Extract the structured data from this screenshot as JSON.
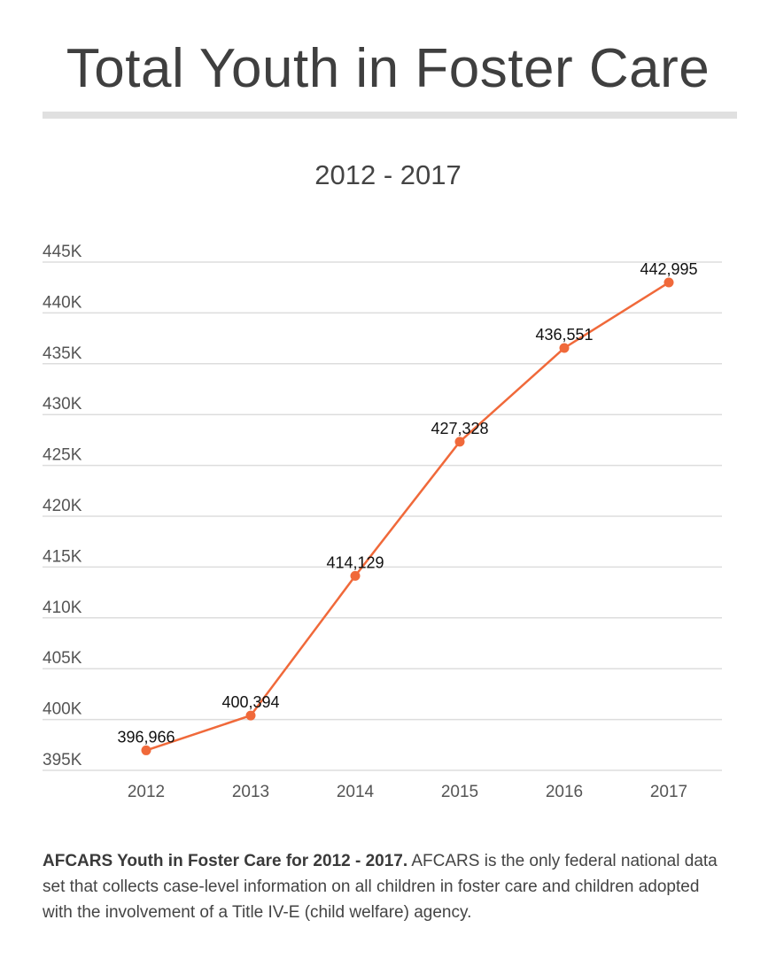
{
  "title": "Total Youth in Foster Care",
  "subtitle": "2012 - 2017",
  "colors": {
    "line": "#f0693a",
    "grid": "#dddddd",
    "text": "#444444"
  },
  "chart_data": {
    "type": "line",
    "title": "Total Youth in Foster Care",
    "subtitle": "2012 - 2017",
    "xlabel": "",
    "ylabel": "",
    "categories": [
      "2012",
      "2013",
      "2014",
      "2015",
      "2016",
      "2017"
    ],
    "series": [
      {
        "name": "Total Youth in Foster Care",
        "values": [
          396966,
          400394,
          414129,
          427328,
          436551,
          442995
        ]
      }
    ],
    "data_labels": [
      "396,966",
      "400,394",
      "414,129",
      "427,328",
      "436,551",
      "442,995"
    ],
    "ylim": [
      395000,
      445000
    ],
    "yticks": [
      395000,
      400000,
      405000,
      410000,
      415000,
      420000,
      425000,
      430000,
      435000,
      440000,
      445000
    ],
    "ytick_labels": [
      "395K",
      "400K",
      "405K",
      "410K",
      "415K",
      "420K",
      "425K",
      "430K",
      "435K",
      "440K",
      "445K"
    ],
    "grid": true,
    "legend": "none"
  },
  "caption": {
    "lead": "AFCARS Youth in Foster Care for 2012 - 2017.",
    "body": " AFCARS is the only federal national data set that collects case-level information on all children in foster care and children adopted with the involvement of a Title IV-E (child welfare) agency."
  }
}
